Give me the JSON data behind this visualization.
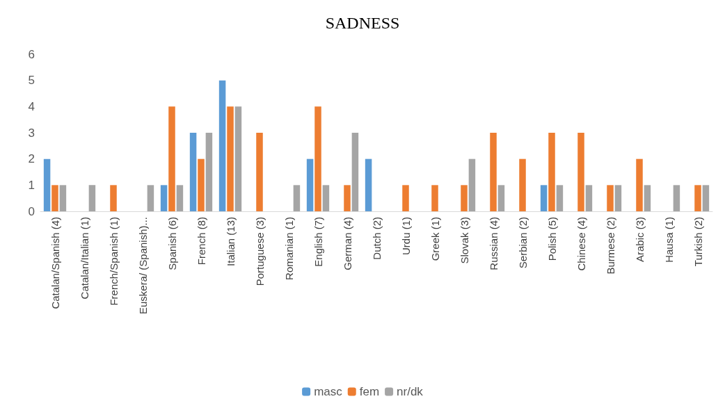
{
  "chart_data": {
    "type": "bar",
    "title": "SADNESS",
    "categories": [
      "Catalan/Spanish (4)",
      "Catalan/Italian (1)",
      "French/Spanish (1)",
      "Euskera/ (Spanish)...",
      "Spanish (6)",
      "French (8)",
      "Italian (13)",
      "Portuguese (3)",
      "Romanian (1)",
      "English (7)",
      "German (4)",
      "Dutch (2)",
      "Urdu (1)",
      "Greek (1)",
      "Slovak (3)",
      "Russian (4)",
      "Serbian (2)",
      "Polish (5)",
      "Chinese (4)",
      "Burmese (2)",
      "Arabic (3)",
      "Hausa (1)",
      "Turkish (2)"
    ],
    "series": [
      {
        "name": "masc",
        "color": "#5b9bd5",
        "values": [
          2,
          0,
          0,
          0,
          1,
          3,
          5,
          0,
          0,
          2,
          0,
          2,
          0,
          0,
          0,
          0,
          0,
          1,
          0,
          0,
          0,
          0,
          0
        ]
      },
      {
        "name": "fem",
        "color": "#ed7d31",
        "values": [
          1,
          0,
          1,
          0,
          4,
          2,
          4,
          3,
          0,
          4,
          1,
          0,
          1,
          1,
          1,
          3,
          2,
          3,
          3,
          1,
          2,
          0,
          1
        ]
      },
      {
        "name": "nr/dk",
        "color": "#a5a5a5",
        "values": [
          1,
          1,
          0,
          1,
          1,
          3,
          4,
          0,
          1,
          1,
          3,
          0,
          0,
          0,
          2,
          1,
          0,
          1,
          1,
          1,
          1,
          1,
          1
        ]
      }
    ],
    "ylim": [
      0,
      6
    ],
    "yticks": [
      0,
      1,
      2,
      3,
      4,
      5,
      6
    ],
    "grid": false,
    "legend": "bottom"
  }
}
